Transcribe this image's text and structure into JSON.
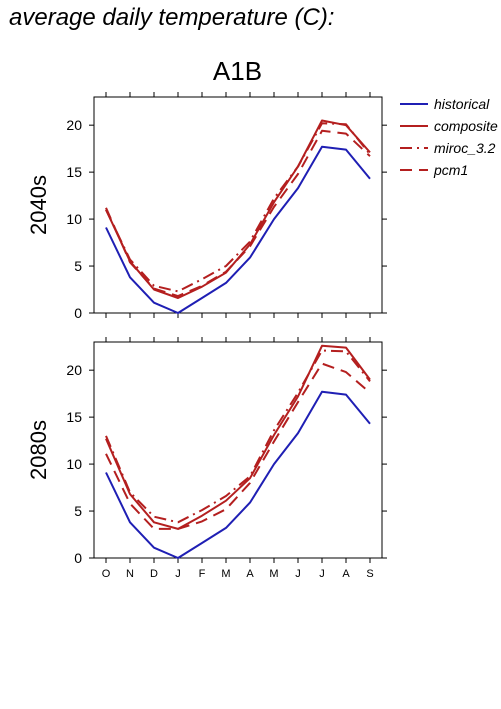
{
  "page": {
    "title": "average daily temperature (C):",
    "scenario": "A1B"
  },
  "legend": {
    "items": [
      {
        "label": "historical",
        "color": "#1f1fb4",
        "dash": "solid"
      },
      {
        "label": "composite",
        "color": "#b41f1f",
        "dash": "solid"
      },
      {
        "label": "miroc_3.2",
        "color": "#b41f1f",
        "dash": "dashdot"
      },
      {
        "label": "pcm1",
        "color": "#b41f1f",
        "dash": "dashed"
      }
    ]
  },
  "chart_data": [
    {
      "type": "line",
      "title": "A1B",
      "ylabel": "2040s",
      "xlabel": "",
      "categories": [
        "O",
        "N",
        "D",
        "J",
        "F",
        "M",
        "A",
        "M",
        "J",
        "J",
        "A",
        "S"
      ],
      "ylim": [
        0,
        23
      ],
      "yticks": [
        0,
        5,
        10,
        15,
        20
      ],
      "grid": false,
      "legend_position": "right",
      "series": [
        {
          "name": "historical",
          "color": "#1f1fb4",
          "dash": "solid",
          "values": [
            9.1,
            3.8,
            1.1,
            0.0,
            1.6,
            3.2,
            5.9,
            10.0,
            13.3,
            17.7,
            17.4,
            14.3
          ]
        },
        {
          "name": "composite",
          "color": "#b41f1f",
          "dash": "solid",
          "values": [
            11.0,
            5.5,
            2.5,
            1.6,
            2.8,
            4.3,
            7.3,
            11.8,
            15.6,
            20.5,
            20.0,
            17.1
          ]
        },
        {
          "name": "miroc_3.2",
          "color": "#b41f1f",
          "dash": "dashdot",
          "values": [
            11.0,
            5.7,
            2.9,
            2.3,
            3.6,
            5.0,
            7.6,
            12.2,
            15.6,
            20.2,
            20.1,
            16.9
          ]
        },
        {
          "name": "pcm1",
          "color": "#b41f1f",
          "dash": "dashed",
          "values": [
            11.2,
            5.4,
            2.6,
            1.8,
            2.9,
            4.4,
            7.1,
            11.3,
            14.8,
            19.4,
            19.1,
            16.7
          ]
        }
      ]
    },
    {
      "type": "line",
      "title": "",
      "ylabel": "2080s",
      "xlabel": "",
      "categories": [
        "O",
        "N",
        "D",
        "J",
        "F",
        "M",
        "A",
        "M",
        "J",
        "J",
        "A",
        "S"
      ],
      "ylim": [
        0,
        23
      ],
      "yticks": [
        0,
        5,
        10,
        15,
        20
      ],
      "grid": false,
      "legend_position": "none",
      "series": [
        {
          "name": "historical",
          "color": "#1f1fb4",
          "dash": "solid",
          "values": [
            9.1,
            3.8,
            1.1,
            0.0,
            1.6,
            3.2,
            5.9,
            10.0,
            13.3,
            17.7,
            17.4,
            14.3
          ]
        },
        {
          "name": "composite",
          "color": "#b41f1f",
          "dash": "solid",
          "values": [
            12.7,
            6.8,
            3.8,
            3.1,
            4.5,
            6.1,
            8.5,
            13.1,
            17.2,
            22.6,
            22.4,
            19.0
          ]
        },
        {
          "name": "miroc_3.2",
          "color": "#b41f1f",
          "dash": "dashdot",
          "values": [
            13.0,
            7.0,
            4.4,
            3.8,
            5.1,
            6.6,
            8.7,
            13.6,
            17.6,
            22.1,
            22.0,
            18.8
          ]
        },
        {
          "name": "pcm1",
          "color": "#b41f1f",
          "dash": "dashed",
          "values": [
            11.1,
            5.8,
            3.1,
            3.1,
            3.9,
            5.2,
            8.0,
            12.4,
            16.6,
            20.7,
            19.8,
            17.6
          ]
        }
      ]
    }
  ]
}
